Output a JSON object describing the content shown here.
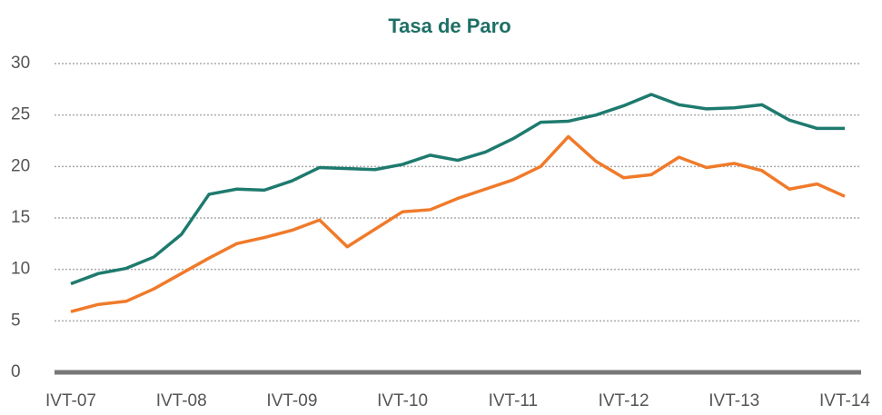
{
  "chart_data": {
    "type": "line",
    "title": "Tasa de Paro",
    "categories": [
      "IVT-07",
      null,
      null,
      null,
      "IVT-08",
      null,
      null,
      null,
      "IVT-09",
      null,
      null,
      null,
      "IVT-10",
      null,
      null,
      null,
      "IVT-11",
      null,
      null,
      null,
      "IVT-12",
      null,
      null,
      null,
      "IVT-13",
      null,
      null,
      null,
      "IVT-14"
    ],
    "series": [
      {
        "color": "#1e7a6e",
        "values": [
          8.6,
          9.6,
          10.1,
          11.2,
          13.4,
          17.3,
          17.8,
          17.7,
          18.6,
          19.9,
          19.8,
          19.7,
          20.2,
          21.1,
          20.6,
          21.4,
          22.7,
          24.3,
          24.4,
          25.0,
          25.9,
          27.0,
          26.0,
          25.6,
          25.7,
          26.0,
          24.5,
          23.7,
          23.7
        ]
      },
      {
        "color": "#f07a2a",
        "values": [
          5.9,
          6.6,
          6.9,
          8.1,
          9.6,
          11.1,
          12.5,
          13.1,
          13.8,
          14.8,
          12.2,
          13.9,
          15.6,
          15.8,
          16.9,
          17.8,
          18.7,
          20.0,
          22.9,
          20.5,
          18.9,
          19.2,
          20.9,
          19.9,
          20.3,
          19.6,
          17.8,
          18.3,
          17.1
        ]
      }
    ],
    "ylim": [
      0,
      30
    ],
    "yticks": [
      0,
      5,
      10,
      15,
      20,
      25,
      30
    ],
    "grid": true
  }
}
